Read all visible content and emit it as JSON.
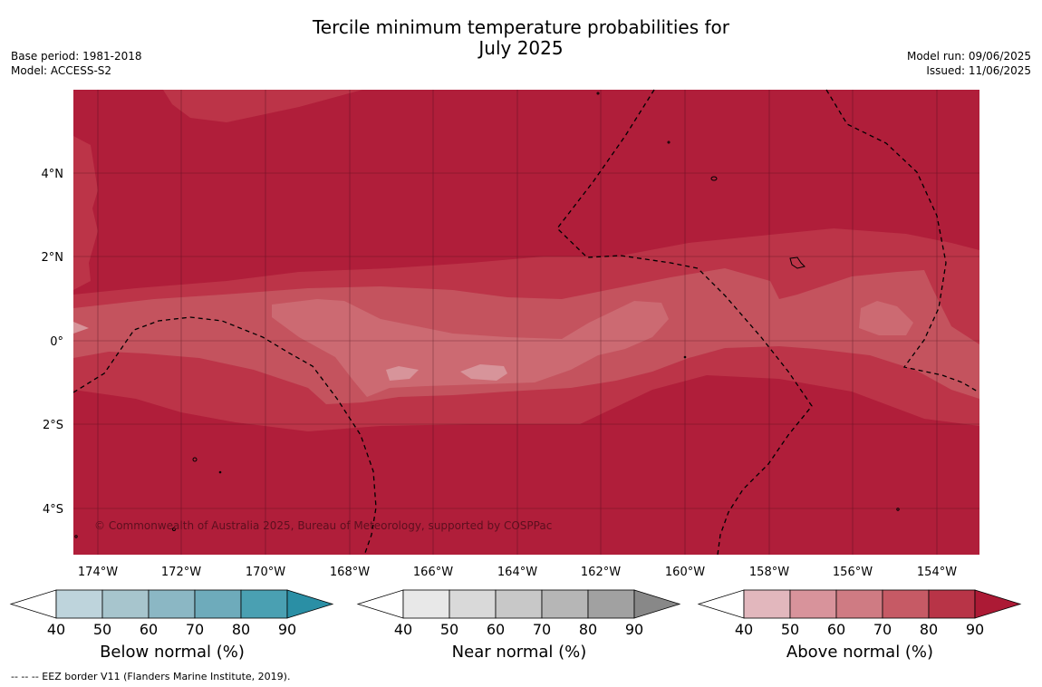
{
  "title": {
    "line1": "Tercile minimum temperature probabilities for",
    "line2": "July 2025"
  },
  "meta_left": {
    "base_period": "Base period: 1981-2018",
    "model": "Model: ACCESS-S2"
  },
  "meta_right": {
    "model_run": "Model run: 09/06/2025",
    "issued": "Issued: 11/06/2025"
  },
  "map": {
    "lon_ticks": [
      "174°W",
      "172°W",
      "170°W",
      "168°W",
      "166°W",
      "164°W",
      "162°W",
      "160°W",
      "158°W",
      "156°W",
      "154°W"
    ],
    "lat_ticks": [
      "4°N",
      "2°N",
      "0°",
      "2°S",
      "4°S"
    ],
    "lon_range": [
      -174.6,
      -152.95
    ],
    "lat_range": [
      -5.1,
      5.85
    ],
    "copyright": "© Commonwealth of Australia 2025, Bureau of Meteorology, supported by COSPPac",
    "colors": {
      "ocean_land_outline": "#000000",
      "above_80_90": "#b01e3a",
      "above_70_80": "#bc3448",
      "above_60_70": "#c4535e",
      "above_50_60": "#cc6a72",
      "above_40_50": "#d7949a"
    }
  },
  "colorbars": [
    {
      "id": "below",
      "label": "Below normal (%)",
      "ticks": [
        "40",
        "50",
        "60",
        "70",
        "80",
        "90"
      ],
      "colors": [
        "#bed4dc",
        "#a7c5cd",
        "#8bb7c4",
        "#6eabbb",
        "#4aa0b2",
        "#2a8fa5"
      ]
    },
    {
      "id": "near",
      "label": "Near normal (%)",
      "ticks": [
        "40",
        "50",
        "60",
        "70",
        "80",
        "90"
      ],
      "colors": [
        "#e8e8e8",
        "#d9d9d9",
        "#c8c8c8",
        "#b6b6b6",
        "#a1a1a1",
        "#888888"
      ]
    },
    {
      "id": "above",
      "label": "Above normal (%)",
      "ticks": [
        "40",
        "50",
        "60",
        "70",
        "80",
        "90"
      ],
      "colors": [
        "#e2b7bd",
        "#d8939b",
        "#cf7b83",
        "#c65a65",
        "#b83447",
        "#ac1a35"
      ]
    }
  ],
  "footer": "-- -- -- EEZ border V11 (Flanders Marine Institute, 2019)."
}
